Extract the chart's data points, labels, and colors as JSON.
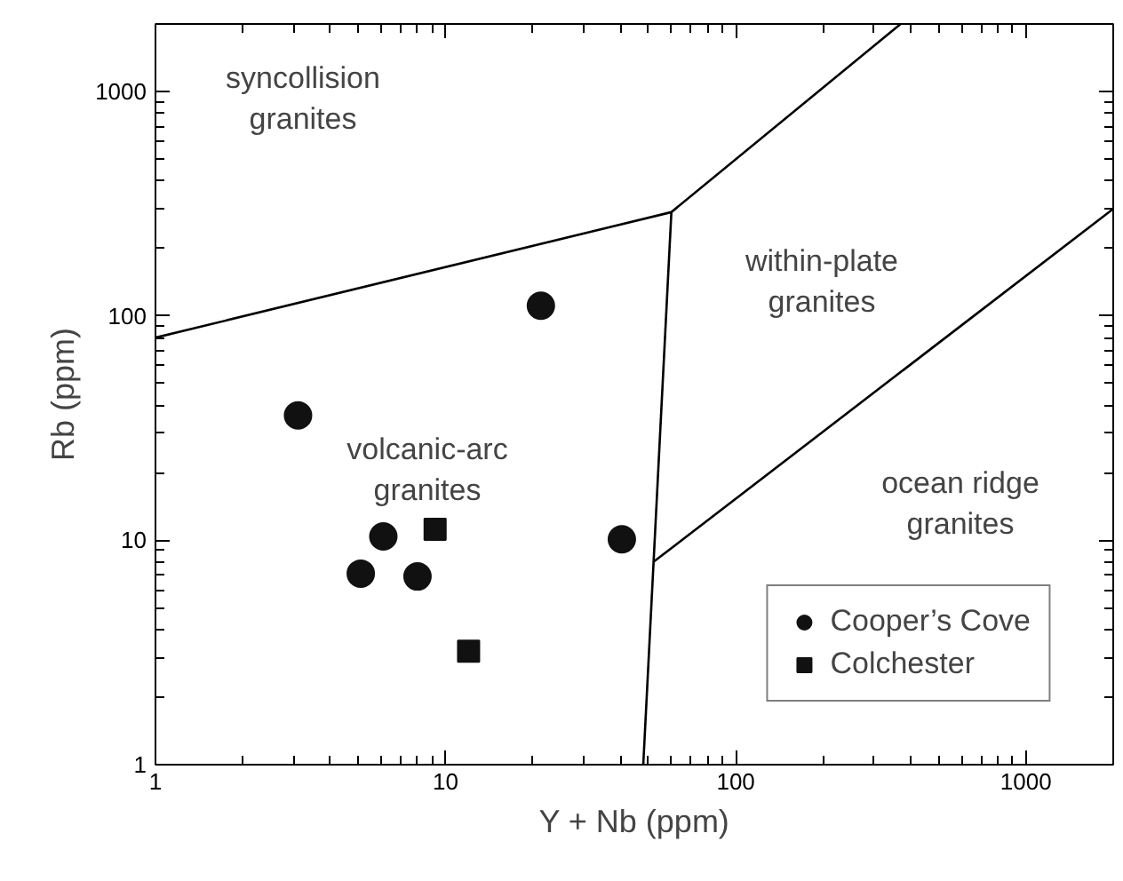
{
  "chart_data": {
    "type": "scatter",
    "xlabel": "Y + Nb (ppm)",
    "ylabel": "Rb (ppm)",
    "log": "xy",
    "xlim": [
      1,
      2000
    ],
    "ylim": [
      1,
      2000
    ],
    "xticks": [
      1,
      10,
      100,
      1000
    ],
    "yticks": [
      1,
      10,
      100,
      1000
    ],
    "grid": false,
    "legend": "bottom right",
    "series": [
      {
        "type": "line",
        "color": "#000000",
        "x": [
          1,
          60,
          370
        ],
        "values": [
          80,
          290,
          2000
        ]
      },
      {
        "type": "line",
        "color": "#000000",
        "x": [
          60,
          48
        ],
        "values": [
          290,
          1
        ]
      },
      {
        "type": "line",
        "color": "#000000",
        "x": [
          52,
          2000
        ],
        "values": [
          8,
          300
        ]
      },
      {
        "name": "Cooper’s Cove",
        "marker": "circle",
        "color": "#111111",
        "x": [
          21.3,
          3.1,
          6.1,
          5.1,
          8.0,
          40.5
        ],
        "values": [
          111,
          36,
          10.4,
          7.1,
          6.9,
          10.1
        ]
      },
      {
        "name": "Colchester",
        "marker": "square",
        "color": "#111111",
        "x": [
          9.2,
          12.0
        ],
        "values": [
          11.2,
          3.2
        ]
      }
    ],
    "annotations": [
      "syncollision\ngranites",
      "within-plate\ngranites",
      "volcanic-arc\ngranites",
      "ocean ridge\ngranites"
    ]
  }
}
